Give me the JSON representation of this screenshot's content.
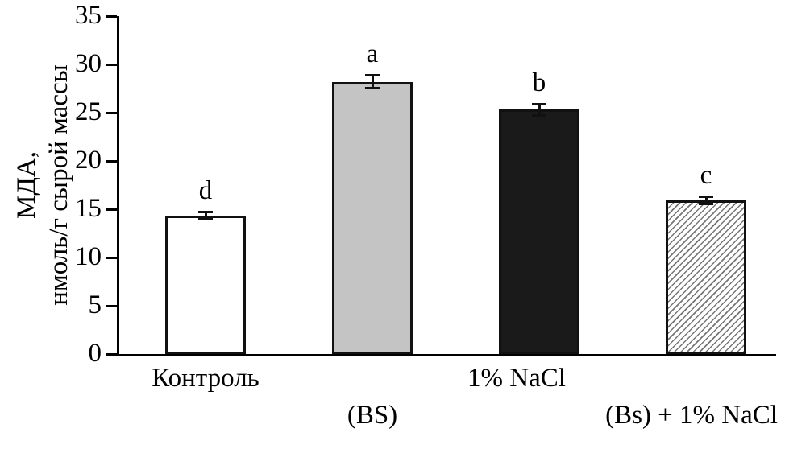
{
  "chart_data": {
    "type": "bar",
    "title": "",
    "ylabel_line1": "МДА,",
    "ylabel_line2": "нмоль/г сырой массы",
    "xlabel": "",
    "ylim": [
      0,
      35
    ],
    "yticks": [
      0,
      5,
      10,
      15,
      20,
      25,
      30,
      35
    ],
    "grid": false,
    "legend": false,
    "bars": [
      {
        "name": "Контроль",
        "value": 14.3,
        "error": 0.5,
        "letter": "d",
        "fill": "white",
        "label_row1": "Контроль",
        "label_row2": ""
      },
      {
        "name": "BS",
        "value": 28.2,
        "error": 0.8,
        "letter": "a",
        "fill": "gray",
        "label_row1": "",
        "label_row2": "(BS)"
      },
      {
        "name": "1% NaCl",
        "value": 25.3,
        "error": 0.7,
        "letter": "b",
        "fill": "black",
        "label_row1": "1% NaCl",
        "label_row2": ""
      },
      {
        "name": "Bs + 1% NaCl",
        "value": 15.9,
        "error": 0.5,
        "letter": "c",
        "fill": "hatch",
        "label_row1": "",
        "label_row2": "(Bs) + 1% NaCl"
      }
    ],
    "colors": {
      "white": "#ffffff",
      "gray": "#c4c4c4",
      "black": "#1a1a1a",
      "axis": "#000000"
    }
  }
}
